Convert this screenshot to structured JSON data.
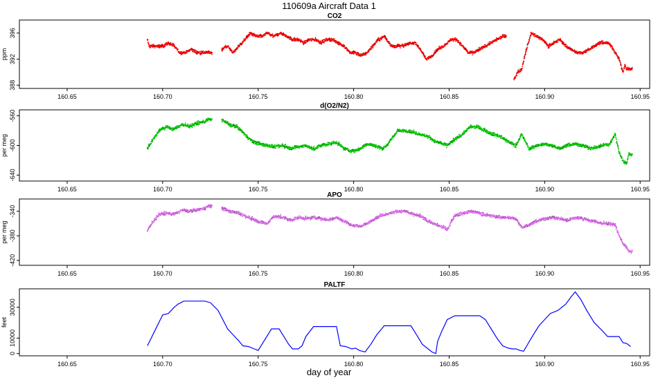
{
  "figure": {
    "title": "110609a   Aircraft Data 1",
    "xlabel": "day of year"
  },
  "x_ticks": [
    "160.65",
    "160.70",
    "160.75",
    "160.80",
    "160.85",
    "160.90",
    "160.95"
  ],
  "chart_data": [
    {
      "type": "scatter",
      "title": "CO2",
      "ylabel": "ppm",
      "xlim": [
        160.625,
        160.955
      ],
      "ylim": [
        387.5,
        398
      ],
      "yticks": [
        388,
        392,
        396
      ],
      "color": "#ff0000",
      "series": [
        {
          "x": [
            160.692,
            160.693,
            160.698,
            160.7,
            160.703,
            160.706,
            160.709,
            160.712,
            160.715,
            160.718,
            160.721,
            160.724,
            160.731,
            160.734,
            160.737,
            160.74,
            160.743,
            160.746,
            160.749,
            160.752,
            160.755,
            160.758,
            160.762,
            160.765,
            160.768,
            160.771,
            160.774,
            160.777,
            160.78,
            160.783,
            160.786,
            160.789,
            160.792,
            160.795,
            160.798,
            160.801,
            160.804,
            160.807,
            160.81,
            160.813,
            160.816,
            160.82,
            160.823,
            160.826,
            160.829,
            160.832,
            160.835,
            160.838,
            160.841,
            160.844,
            160.847,
            160.851,
            160.854,
            160.857,
            160.86,
            160.863,
            160.866,
            160.869,
            160.872,
            160.875,
            160.878,
            160.884,
            160.886,
            160.888,
            160.89,
            160.893,
            160.896,
            160.899,
            160.902,
            160.905,
            160.908,
            160.911,
            160.914,
            160.917,
            160.92,
            160.923,
            160.926,
            160.929,
            160.933,
            160.935,
            160.937,
            160.939,
            160.941,
            160.942,
            160.943,
            160.944
          ],
          "y": [
            395,
            394,
            394,
            394,
            394.5,
            394,
            393,
            393,
            393.5,
            393,
            393,
            393,
            393.5,
            394,
            393,
            394,
            395,
            396,
            395.5,
            395.5,
            396,
            395.5,
            396,
            395.5,
            395,
            395,
            394.5,
            395,
            395,
            394.5,
            395,
            395,
            394.5,
            394,
            393,
            393,
            392.5,
            393,
            394,
            395,
            395.5,
            394,
            394,
            394,
            394.5,
            394.5,
            393.5,
            392,
            392.5,
            393.5,
            394,
            395,
            395,
            394,
            393,
            393,
            393.5,
            394,
            394.5,
            395,
            395.5,
            389,
            390,
            390.5,
            393,
            396,
            395.5,
            395,
            394,
            394.5,
            395,
            394,
            393.5,
            393,
            393,
            393.5,
            394,
            394.5,
            394.5,
            394,
            393,
            392,
            390,
            391,
            390.5,
            390.5
          ]
        }
      ]
    },
    {
      "type": "scatter",
      "title": "d(O2/N2)",
      "ylabel": "per meg",
      "xlim": [
        160.625,
        160.955
      ],
      "ylim": [
        -648,
        -552
      ],
      "yticks": [
        -560,
        -600,
        -640
      ],
      "color": "#00cc00",
      "series": [
        {
          "x": [
            160.692,
            160.693,
            160.698,
            160.702,
            160.706,
            160.71,
            160.714,
            160.718,
            160.722,
            160.724,
            160.731,
            160.735,
            160.739,
            160.743,
            160.747,
            160.751,
            160.755,
            160.758,
            160.763,
            160.767,
            160.771,
            160.775,
            160.779,
            160.783,
            160.787,
            160.791,
            160.795,
            160.799,
            160.803,
            160.807,
            160.811,
            160.815,
            160.818,
            160.823,
            160.827,
            160.831,
            160.835,
            160.839,
            160.843,
            160.847,
            160.849,
            160.853,
            160.857,
            160.861,
            160.865,
            160.869,
            160.873,
            160.877,
            160.881,
            160.885,
            160.888,
            160.892,
            160.896,
            160.9,
            160.904,
            160.908,
            160.912,
            160.916,
            160.92,
            160.924,
            160.928,
            160.93,
            160.934,
            160.937,
            160.939,
            160.941,
            160.943,
            160.944
          ],
          "y": [
            -604,
            -600,
            -580,
            -575,
            -578,
            -572,
            -574,
            -570,
            -568,
            -565,
            -565,
            -572,
            -575,
            -585,
            -595,
            -598,
            -600,
            -602,
            -600,
            -604,
            -602,
            -600,
            -605,
            -600,
            -598,
            -596,
            -604,
            -608,
            -605,
            -598,
            -600,
            -604,
            -598,
            -580,
            -580,
            -582,
            -585,
            -588,
            -595,
            -598,
            -600,
            -592,
            -585,
            -575,
            -575,
            -580,
            -585,
            -588,
            -595,
            -600,
            -585,
            -605,
            -600,
            -598,
            -600,
            -604,
            -600,
            -598,
            -600,
            -604,
            -602,
            -600,
            -598,
            -585,
            -610,
            -620,
            -625,
            -612
          ]
        }
      ]
    },
    {
      "type": "scatter",
      "title": "APO",
      "ylabel": "per meg",
      "xlim": [
        160.625,
        160.955
      ],
      "ylim": [
        -428,
        -320
      ],
      "yticks": [
        -340,
        -380,
        -420
      ],
      "color": "#e070f0",
      "series": [
        {
          "x": [
            160.692,
            160.693,
            160.698,
            160.702,
            160.706,
            160.71,
            160.714,
            160.718,
            160.722,
            160.724,
            160.731,
            160.735,
            160.739,
            160.743,
            160.747,
            160.751,
            160.755,
            160.758,
            160.763,
            160.767,
            160.771,
            160.775,
            160.779,
            160.783,
            160.787,
            160.791,
            160.795,
            160.799,
            160.803,
            160.807,
            160.811,
            160.815,
            160.818,
            160.823,
            160.827,
            160.831,
            160.835,
            160.839,
            160.843,
            160.847,
            160.849,
            160.853,
            160.857,
            160.861,
            160.865,
            160.869,
            160.873,
            160.877,
            160.881,
            160.885,
            160.888,
            160.892,
            160.896,
            160.9,
            160.904,
            160.908,
            160.912,
            160.916,
            160.92,
            160.924,
            160.928,
            160.93,
            160.934,
            160.937,
            160.939,
            160.941,
            160.943,
            160.944
          ],
          "y": [
            -372,
            -366,
            -345,
            -343,
            -345,
            -338,
            -340,
            -338,
            -335,
            -332,
            -335,
            -340,
            -342,
            -348,
            -352,
            -358,
            -360,
            -348,
            -350,
            -355,
            -350,
            -352,
            -350,
            -352,
            -354,
            -350,
            -356,
            -362,
            -365,
            -360,
            -352,
            -346,
            -344,
            -340,
            -340,
            -345,
            -348,
            -356,
            -362,
            -366,
            -370,
            -346,
            -344,
            -340,
            -342,
            -346,
            -348,
            -350,
            -350,
            -352,
            -366,
            -362,
            -356,
            -352,
            -350,
            -352,
            -355,
            -350,
            -352,
            -355,
            -358,
            -360,
            -360,
            -362,
            -380,
            -392,
            -400,
            -405
          ]
        }
      ]
    },
    {
      "type": "line",
      "title": "PALTF",
      "ylabel": "feet",
      "xlim": [
        160.625,
        160.955
      ],
      "ylim": [
        -1500,
        42000
      ],
      "yticks": [
        0,
        10000,
        30000
      ],
      "color": "#0000ff",
      "series": [
        {
          "x": [
            160.692,
            160.696,
            160.7,
            160.703,
            160.706,
            160.708,
            160.711,
            160.716,
            160.722,
            160.725,
            160.729,
            160.734,
            160.737,
            160.74,
            160.742,
            160.745,
            160.748,
            160.75,
            160.753,
            160.757,
            160.761,
            160.764,
            160.766,
            160.768,
            160.771,
            160.773,
            160.775,
            160.779,
            160.788,
            160.791,
            160.793,
            160.796,
            160.799,
            160.801,
            160.803,
            160.806,
            160.809,
            160.812,
            160.816,
            160.823,
            160.827,
            160.83,
            160.833,
            160.836,
            160.839,
            160.841,
            160.843,
            160.844,
            160.846,
            160.849,
            160.853,
            160.859,
            160.866,
            160.869,
            160.872,
            160.875,
            160.878,
            160.881,
            160.883,
            160.885,
            160.887,
            160.889,
            160.893,
            160.897,
            160.9,
            160.903,
            160.907,
            160.911,
            160.914,
            160.916,
            160.919,
            160.922,
            160.926,
            160.93,
            160.933,
            160.936,
            160.939,
            160.941,
            160.943,
            160.945
          ],
          "y": [
            5000,
            15000,
            25000,
            26000,
            30000,
            32000,
            34000,
            34000,
            34000,
            33000,
            28000,
            16000,
            12000,
            8000,
            5000,
            4500,
            3000,
            2000,
            8000,
            16000,
            16000,
            10000,
            6000,
            3000,
            3000,
            5000,
            11000,
            17500,
            17500,
            17500,
            5000,
            4500,
            3000,
            3500,
            2000,
            1000,
            6000,
            12000,
            18000,
            18000,
            18000,
            18000,
            12000,
            6000,
            3000,
            1000,
            0,
            8000,
            14000,
            22000,
            24500,
            24500,
            24500,
            22000,
            16000,
            10000,
            5000,
            3500,
            3000,
            3000,
            2000,
            1500,
            10000,
            18000,
            22000,
            26000,
            28000,
            32000,
            37000,
            40000,
            35000,
            28000,
            20000,
            15000,
            11000,
            11000,
            11000,
            7000,
            6500,
            4500
          ]
        }
      ]
    }
  ]
}
